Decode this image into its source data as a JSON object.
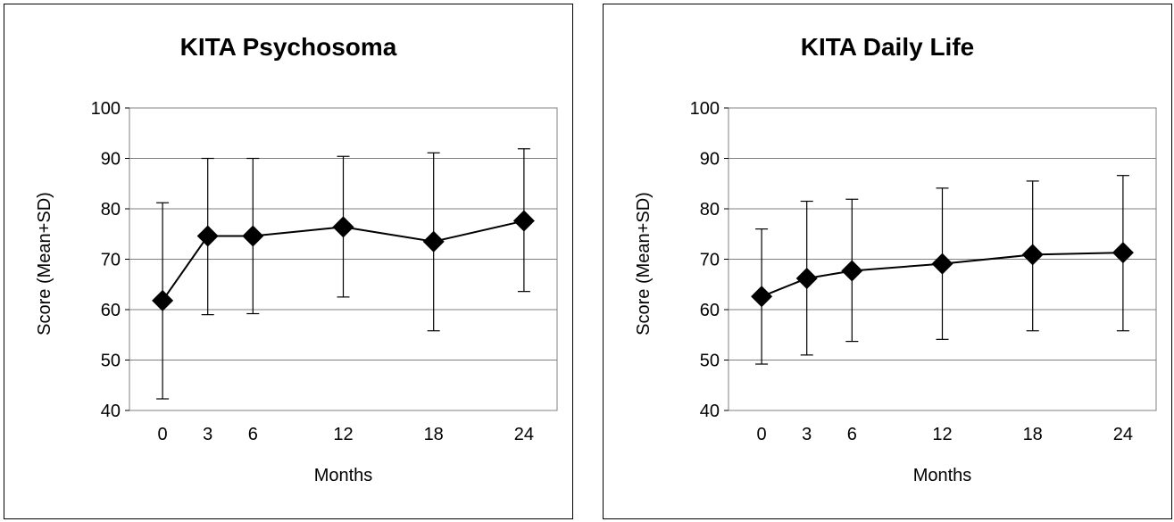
{
  "chart_data": [
    {
      "type": "line",
      "title": "KITA  Psychosoma",
      "xlabel": "Months",
      "ylabel": "Score (Mean+SD)",
      "ylim": [
        40,
        100
      ],
      "yticks": [
        40,
        50,
        60,
        70,
        80,
        90,
        100
      ],
      "x": [
        0,
        3,
        6,
        12,
        18,
        24
      ],
      "x_tick_labels": [
        "0",
        "3",
        "6",
        "12",
        "18",
        "24"
      ],
      "grid": true,
      "legend": "none",
      "marker": "diamond",
      "colors": {
        "line": "#000000",
        "grid": "#808080",
        "plot_border": "#808080"
      },
      "series": [
        {
          "values": [
            61.8,
            74.6,
            74.6,
            76.4,
            73.5,
            77.6
          ],
          "error_low": [
            42.3,
            59.0,
            59.2,
            62.5,
            55.8,
            63.6
          ],
          "error_high": [
            81.2,
            90.0,
            90.0,
            90.4,
            91.1,
            91.9
          ]
        }
      ]
    },
    {
      "type": "line",
      "title": "KITA Daily Life",
      "xlabel": "Months",
      "ylabel": "Score (Mean+SD)",
      "ylim": [
        40,
        100
      ],
      "yticks": [
        40,
        50,
        60,
        70,
        80,
        90,
        100
      ],
      "x": [
        0,
        3,
        6,
        12,
        18,
        24
      ],
      "x_tick_labels": [
        "0",
        "3",
        "6",
        "12",
        "18",
        "24"
      ],
      "grid": true,
      "legend": "none",
      "marker": "diamond",
      "colors": {
        "line": "#000000",
        "grid": "#808080",
        "plot_border": "#808080"
      },
      "series": [
        {
          "values": [
            62.6,
            66.2,
            67.7,
            69.1,
            70.9,
            71.3
          ],
          "error_low": [
            49.2,
            51.0,
            53.7,
            54.1,
            55.8,
            55.8
          ],
          "error_high": [
            76.0,
            81.5,
            81.9,
            84.1,
            85.5,
            86.6
          ]
        }
      ]
    }
  ]
}
